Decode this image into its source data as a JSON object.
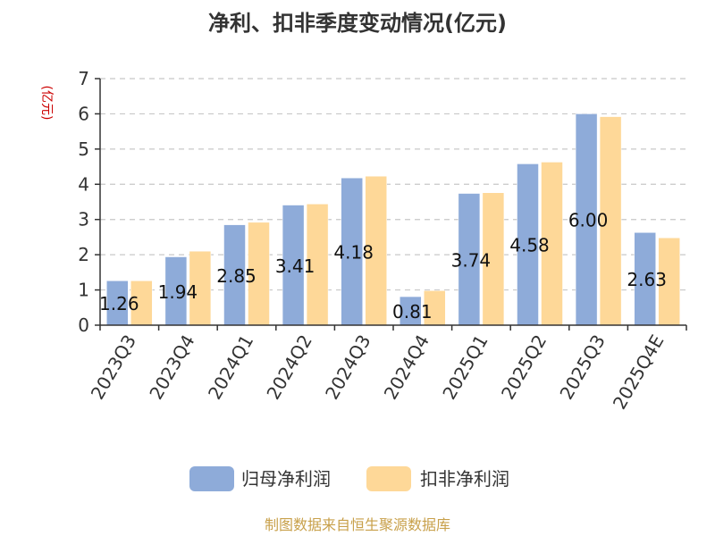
{
  "chart_data": {
    "type": "bar",
    "title": "净利、扣非季度变动情况(亿元)",
    "ylabel": "(亿元)",
    "xlabel": "",
    "categories": [
      "2023Q3",
      "2023Q4",
      "2024Q1",
      "2024Q2",
      "2024Q3",
      "2024Q4",
      "2025Q1",
      "2025Q2",
      "2025Q3",
      "2025Q4E"
    ],
    "series": [
      {
        "name": "归母净利润",
        "color": "#8eabd9",
        "values": [
          1.26,
          1.94,
          2.85,
          3.41,
          4.18,
          0.81,
          3.74,
          4.58,
          6.0,
          2.63
        ]
      },
      {
        "name": "扣非净利润",
        "color": "#fed898",
        "values": [
          1.26,
          2.1,
          2.92,
          3.44,
          4.23,
          0.98,
          3.76,
          4.63,
          5.92,
          2.48
        ]
      }
    ],
    "data_labels": [
      "1.26",
      "1.94",
      "2.85",
      "3.41",
      "4.18",
      "0.81",
      "3.74",
      "4.58",
      "6.00",
      "2.63"
    ],
    "ylim": [
      0,
      7
    ],
    "yticks": [
      0,
      1,
      2,
      3,
      4,
      5,
      6,
      7
    ],
    "grid": true,
    "legend": "bottom"
  },
  "source": "制图数据来自恒生聚源数据库"
}
